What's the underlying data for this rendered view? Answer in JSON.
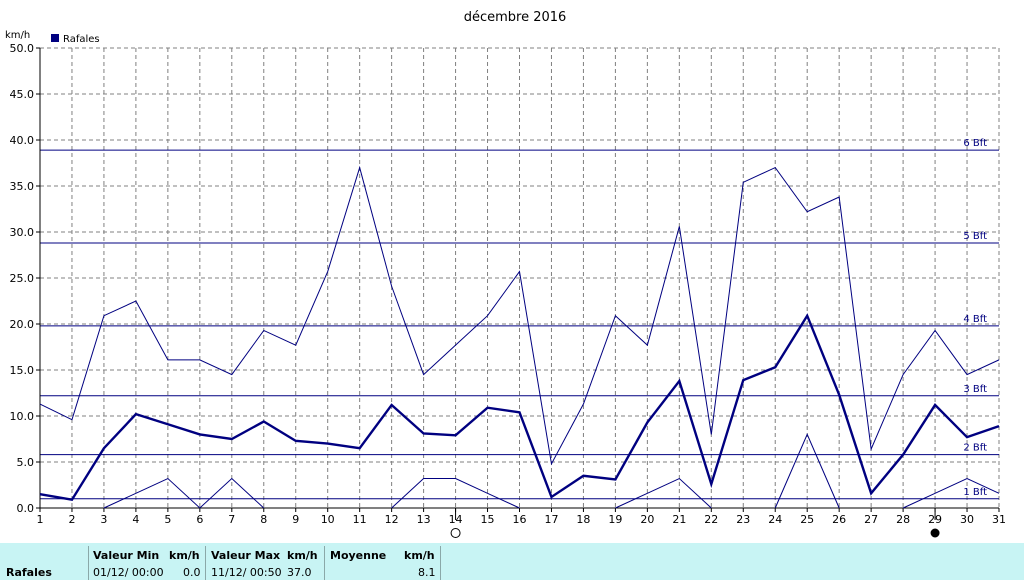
{
  "chart_data": {
    "type": "line",
    "title": "décembre 2016",
    "ylabel": "km/h",
    "xlabel": "",
    "ylim": [
      0,
      50
    ],
    "xlim": [
      1,
      31
    ],
    "y_ticks": [
      "0.0",
      "5.0",
      "10.0",
      "15.0",
      "20.0",
      "25.0",
      "30.0",
      "35.0",
      "40.0",
      "45.0",
      "50.0"
    ],
    "y_tick_values": [
      0,
      5,
      10,
      15,
      20,
      25,
      30,
      35,
      40,
      45,
      50
    ],
    "x": [
      1,
      2,
      3,
      4,
      5,
      6,
      7,
      8,
      9,
      10,
      11,
      12,
      13,
      14,
      15,
      16,
      17,
      18,
      19,
      20,
      21,
      22,
      23,
      24,
      25,
      26,
      27,
      28,
      29,
      30,
      31
    ],
    "grid": true,
    "legend": {
      "placement": "top-left",
      "label": "Rafales",
      "color": "#000080"
    },
    "series": [
      {
        "name": "Rafales",
        "role": "mean",
        "values": [
          1.5,
          0.9,
          6.5,
          10.2,
          9.1,
          8.0,
          7.5,
          9.4,
          7.3,
          7.0,
          6.5,
          11.2,
          8.1,
          7.9,
          10.9,
          10.4,
          1.2,
          3.5,
          3.1,
          9.3,
          13.8,
          2.6,
          13.9,
          15.3,
          20.9,
          12.3,
          1.6,
          5.8,
          11.2,
          7.7,
          8.9
        ]
      },
      {
        "name": "",
        "role": "max",
        "values": [
          11.3,
          9.6,
          20.9,
          22.5,
          16.1,
          16.1,
          14.5,
          19.3,
          17.7,
          25.7,
          37.0,
          24.1,
          14.5,
          17.7,
          20.9,
          25.7,
          4.8,
          11.3,
          20.9,
          17.7,
          30.6,
          8.0,
          35.4,
          37.0,
          32.2,
          33.8,
          6.4,
          14.5,
          19.3,
          14.5,
          16.1
        ]
      },
      {
        "name": "",
        "role": "min",
        "values": [
          null,
          null,
          0.0,
          1.6,
          3.2,
          0.0,
          3.2,
          0.0,
          null,
          null,
          null,
          0.0,
          3.2,
          3.2,
          1.6,
          0.0,
          null,
          null,
          0.0,
          1.6,
          3.2,
          0.0,
          null,
          0.0,
          8.0,
          0.0,
          null,
          0.0,
          1.6,
          3.2,
          1.6
        ]
      }
    ],
    "reference_lines": [
      {
        "label": "1 Bft",
        "value": 1.0
      },
      {
        "label": "2 Bft",
        "value": 5.8
      },
      {
        "label": "3 Bft",
        "value": 12.2
      },
      {
        "label": "4 Bft",
        "value": 19.8
      },
      {
        "label": "5 Bft",
        "value": 28.8
      },
      {
        "label": "6 Bft",
        "value": 38.9
      }
    ],
    "moon_phases": [
      {
        "day": 14,
        "phase": "full"
      },
      {
        "day": 29,
        "phase": "new"
      }
    ],
    "colors": {
      "series": "#000080",
      "grid": "#808080",
      "axis": "#000000"
    }
  },
  "stats": {
    "row_label": "Rafales",
    "min": {
      "header": "Valeur Min",
      "unit": "km/h",
      "datetime": "01/12/  00:00",
      "value": "0.0"
    },
    "max": {
      "header": "Valeur Max",
      "unit": "km/h",
      "datetime": "11/12/  00:50",
      "value": "37.0"
    },
    "mean": {
      "header": "Moyenne",
      "unit": "km/h",
      "value": "8.1"
    }
  }
}
